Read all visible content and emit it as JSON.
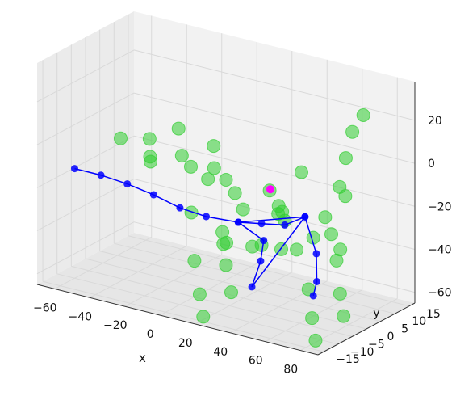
{
  "chart_data": {
    "type": "scatter",
    "projection": "3d",
    "grid": true,
    "xlabel": "x",
    "ylabel": "y",
    "zlabel": "",
    "xlim": [
      -70,
      90
    ],
    "ylim": [
      -17,
      17
    ],
    "zlim": [
      -65,
      38
    ],
    "xticks": [
      "−60",
      "−40",
      "−20",
      "0",
      "20",
      "40",
      "60",
      "80"
    ],
    "yticks": [
      "−15",
      "−10",
      "−5",
      "0",
      "5",
      "10",
      "15"
    ],
    "zticks": [
      "−60",
      "−40",
      "−20",
      "0",
      "20"
    ],
    "colors": {
      "points": "#32cd32",
      "skeleton": "#0000ff",
      "marker": "#ff00ff",
      "pane": "#f2f2f2",
      "grid": "#d9d9d9"
    },
    "series": [
      {
        "kind": "points",
        "values": [
          [
            -50,
            0,
            -5
          ],
          [
            -40,
            4,
            -6
          ],
          [
            -30,
            -2,
            -8
          ],
          [
            -20,
            3,
            -9
          ],
          [
            -10,
            0,
            -10
          ],
          [
            0,
            2,
            -10
          ],
          [
            10,
            0,
            -12
          ],
          [
            20,
            -3,
            -14
          ],
          [
            30,
            3,
            -15
          ],
          [
            40,
            0,
            -18
          ],
          [
            50,
            -4,
            -20
          ],
          [
            60,
            4,
            -22
          ],
          [
            70,
            0,
            -25
          ],
          [
            80,
            -3,
            -28
          ],
          [
            75,
            2,
            10
          ],
          [
            82,
            0,
            25
          ],
          [
            85,
            2,
            32
          ],
          [
            78,
            -2,
            0
          ],
          [
            -10,
            6,
            -20
          ],
          [
            0,
            -6,
            -25
          ],
          [
            10,
            6,
            -30
          ],
          [
            20,
            -6,
            -35
          ],
          [
            30,
            6,
            -28
          ],
          [
            40,
            -6,
            -32
          ],
          [
            50,
            6,
            -35
          ],
          [
            60,
            -6,
            -30
          ],
          [
            -5,
            8,
            -45
          ],
          [
            -3,
            8,
            -60
          ],
          [
            0,
            8,
            -72
          ],
          [
            5,
            -8,
            -45
          ],
          [
            8,
            -8,
            -60
          ],
          [
            10,
            -8,
            -70
          ],
          [
            60,
            8,
            -45
          ],
          [
            62,
            8,
            -60
          ],
          [
            64,
            8,
            -70
          ],
          [
            70,
            -8,
            -45
          ],
          [
            72,
            -8,
            -58
          ],
          [
            74,
            -8,
            -68
          ],
          [
            -30,
            8,
            -2
          ],
          [
            -20,
            -8,
            -4
          ],
          [
            -10,
            8,
            -6
          ],
          [
            40,
            8,
            -8
          ],
          [
            55,
            -8,
            -12
          ],
          [
            65,
            8,
            -14
          ],
          [
            25,
            0,
            -40
          ],
          [
            35,
            4,
            -42
          ],
          [
            15,
            -4,
            -38
          ]
        ]
      },
      {
        "kind": "skeleton",
        "values": [
          [
            -60,
            -10,
            -14
          ],
          [
            -45,
            -10,
            -14
          ],
          [
            -30,
            -10,
            -15
          ],
          [
            -15,
            -10,
            -17
          ],
          [
            0,
            -10,
            -20
          ],
          [
            15,
            -10,
            -21
          ],
          [
            30,
            -8,
            -22
          ],
          [
            40,
            -6,
            -22
          ],
          [
            50,
            -4,
            -22
          ],
          [
            55,
            0,
            -20
          ],
          [
            30,
            -8,
            -22
          ],
          [
            25,
            4,
            -40
          ],
          [
            20,
            6,
            -52
          ],
          [
            15,
            6,
            -65
          ],
          [
            55,
            0,
            -20
          ],
          [
            55,
            4,
            -40
          ],
          [
            52,
            6,
            -55
          ],
          [
            50,
            6,
            -62
          ]
        ]
      },
      {
        "kind": "marker",
        "values": [
          [
            45,
            -6,
            -5
          ]
        ]
      }
    ]
  }
}
